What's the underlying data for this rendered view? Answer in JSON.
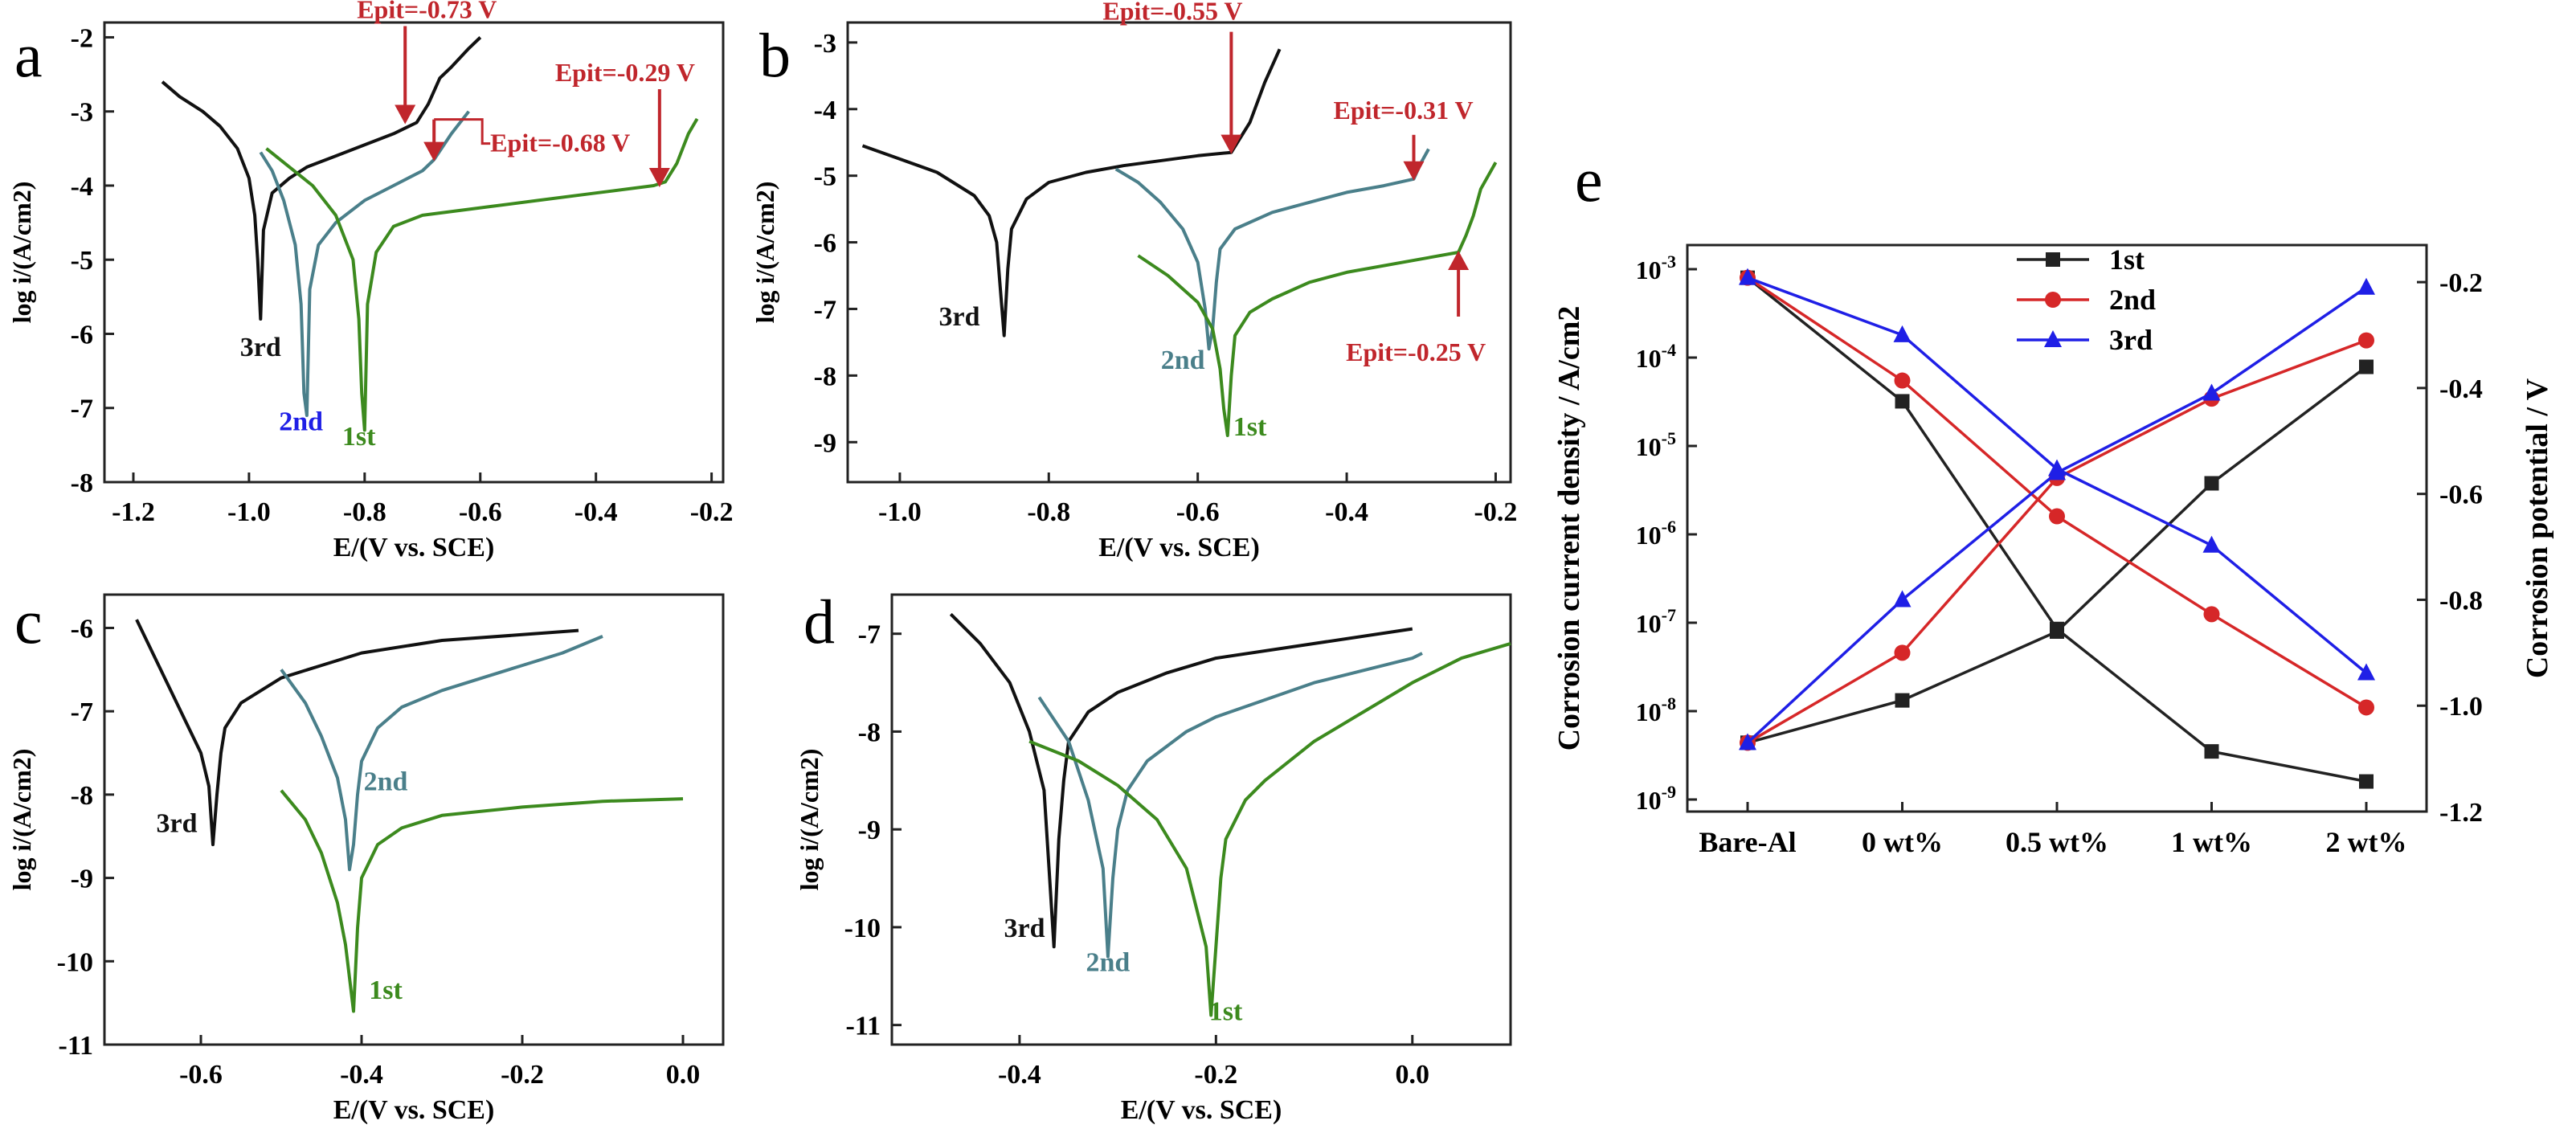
{
  "chart_data": [
    {
      "panel": "a",
      "type": "line",
      "xlabel": "E/(V vs. SCE)",
      "ylabel": "log i/(A/cm2)",
      "xlim": [
        -1.25,
        -0.18
      ],
      "ylim": [
        -8,
        -1.8
      ],
      "xticks": [
        -1.2,
        -1.0,
        -0.8,
        -0.6,
        -0.4,
        -0.2
      ],
      "yticks": [
        -8,
        -7,
        -6,
        -5,
        -4,
        -3,
        -2
      ],
      "series": [
        {
          "name": "3rd",
          "color": "#111111",
          "x": [
            -1.15,
            -1.12,
            -1.08,
            -1.05,
            -1.02,
            -1.0,
            -0.99,
            -0.985,
            -0.98,
            -0.975,
            -0.96,
            -0.93,
            -0.9,
            -0.85,
            -0.8,
            -0.75,
            -0.71,
            -0.69,
            -0.67,
            -0.65,
            -0.62,
            -0.6
          ],
          "y": [
            -2.6,
            -2.8,
            -3.0,
            -3.2,
            -3.5,
            -3.9,
            -4.4,
            -5.0,
            -5.8,
            -4.6,
            -4.1,
            -3.9,
            -3.75,
            -3.6,
            -3.45,
            -3.3,
            -3.15,
            -2.9,
            -2.55,
            -2.4,
            -2.15,
            -2.0
          ]
        },
        {
          "name": "2nd",
          "color": "#4a7f8a",
          "x": [
            -0.98,
            -0.96,
            -0.94,
            -0.92,
            -0.91,
            -0.905,
            -0.9,
            -0.895,
            -0.88,
            -0.85,
            -0.8,
            -0.75,
            -0.7,
            -0.68,
            -0.65,
            -0.62
          ],
          "y": [
            -3.55,
            -3.8,
            -4.2,
            -4.8,
            -5.6,
            -6.8,
            -7.1,
            -5.4,
            -4.8,
            -4.5,
            -4.2,
            -4.0,
            -3.8,
            -3.65,
            -3.3,
            -3.0
          ]
        },
        {
          "name": "1st",
          "color": "#3c8a1e",
          "x": [
            -0.97,
            -0.93,
            -0.89,
            -0.85,
            -0.82,
            -0.81,
            -0.805,
            -0.8,
            -0.795,
            -0.78,
            -0.75,
            -0.7,
            -0.6,
            -0.5,
            -0.4,
            -0.3,
            -0.28,
            -0.26,
            -0.24,
            -0.225
          ],
          "y": [
            -3.5,
            -3.75,
            -4.0,
            -4.4,
            -5.0,
            -5.8,
            -6.8,
            -7.3,
            -5.6,
            -4.9,
            -4.55,
            -4.4,
            -4.3,
            -4.2,
            -4.1,
            -4.0,
            -3.95,
            -3.7,
            -3.3,
            -3.1
          ]
        }
      ],
      "annotations": [
        {
          "label": "Epit=-0.73 V",
          "x": -0.73,
          "y": -3.15
        },
        {
          "label": "Epit=-0.68 V",
          "x": -0.68,
          "y": -3.65
        },
        {
          "label": "Epit=-0.29 V",
          "x": -0.29,
          "y": -4.0
        }
      ],
      "curve_labels": [
        {
          "text": "3rd",
          "x": -0.98,
          "y": -6.3
        },
        {
          "text": "2nd",
          "x": -0.91,
          "y": -7.3
        },
        {
          "text": "1st",
          "x": -0.81,
          "y": -7.5
        }
      ]
    },
    {
      "panel": "b",
      "type": "line",
      "xlabel": "E/(V vs. SCE)",
      "ylabel": "log i/(A/cm2)",
      "xlim": [
        -1.07,
        -0.18
      ],
      "ylim": [
        -9.6,
        -2.7
      ],
      "xticks": [
        -1.0,
        -0.8,
        -0.6,
        -0.4,
        -0.2
      ],
      "yticks": [
        -9,
        -8,
        -7,
        -6,
        -5,
        -4,
        -3
      ],
      "series": [
        {
          "name": "3rd",
          "color": "#111111",
          "x": [
            -1.05,
            -1.0,
            -0.95,
            -0.9,
            -0.88,
            -0.87,
            -0.865,
            -0.86,
            -0.855,
            -0.85,
            -0.83,
            -0.8,
            -0.75,
            -0.7,
            -0.6,
            -0.555,
            -0.53,
            -0.51,
            -0.49
          ],
          "y": [
            -4.55,
            -4.75,
            -4.95,
            -5.3,
            -5.6,
            -6.0,
            -6.7,
            -7.4,
            -6.4,
            -5.8,
            -5.35,
            -5.1,
            -4.95,
            -4.85,
            -4.7,
            -4.65,
            -4.2,
            -3.6,
            -3.1
          ]
        },
        {
          "name": "2nd",
          "color": "#4a7f8a",
          "x": [
            -0.71,
            -0.68,
            -0.65,
            -0.62,
            -0.6,
            -0.59,
            -0.585,
            -0.58,
            -0.575,
            -0.57,
            -0.55,
            -0.5,
            -0.45,
            -0.4,
            -0.35,
            -0.31,
            -0.3,
            -0.29
          ],
          "y": [
            -4.9,
            -5.1,
            -5.4,
            -5.8,
            -6.3,
            -7.0,
            -7.6,
            -7.3,
            -6.6,
            -6.1,
            -5.8,
            -5.55,
            -5.4,
            -5.25,
            -5.15,
            -5.05,
            -4.8,
            -4.6
          ]
        },
        {
          "name": "1st",
          "color": "#3c8a1e",
          "x": [
            -0.68,
            -0.64,
            -0.6,
            -0.58,
            -0.57,
            -0.565,
            -0.56,
            -0.555,
            -0.55,
            -0.53,
            -0.5,
            -0.45,
            -0.4,
            -0.3,
            -0.25,
            -0.24,
            -0.23,
            -0.22,
            -0.2
          ],
          "y": [
            -6.2,
            -6.5,
            -6.9,
            -7.3,
            -7.9,
            -8.5,
            -8.9,
            -8.0,
            -7.4,
            -7.05,
            -6.85,
            -6.6,
            -6.45,
            -6.25,
            -6.15,
            -5.9,
            -5.6,
            -5.2,
            -4.8
          ]
        }
      ],
      "annotations": [
        {
          "label": "Epit=-0.55 V",
          "x": -0.555,
          "y": -4.65
        },
        {
          "label": "Epit=-0.31 V",
          "x": -0.31,
          "y": -5.05
        },
        {
          "label": "Epit=-0.25 V",
          "x": -0.25,
          "y": -6.15
        }
      ],
      "curve_labels": [
        {
          "text": "3rd",
          "x": -0.92,
          "y": -7.25
        },
        {
          "text": "2nd",
          "x": -0.62,
          "y": -7.9
        },
        {
          "text": "1st",
          "x": -0.53,
          "y": -8.9
        }
      ]
    },
    {
      "panel": "c",
      "type": "line",
      "xlabel": "E/(V vs. SCE)",
      "ylabel": "log i/(A/cm2)",
      "xlim": [
        -0.72,
        0.05
      ],
      "ylim": [
        -11,
        -5.6
      ],
      "xticks": [
        -0.6,
        -0.4,
        -0.2,
        0.0
      ],
      "yticks": [
        -11,
        -10,
        -9,
        -8,
        -7,
        -6
      ],
      "series": [
        {
          "name": "3rd",
          "color": "#111111",
          "x": [
            -0.68,
            -0.66,
            -0.64,
            -0.62,
            -0.6,
            -0.59,
            -0.585,
            -0.58,
            -0.575,
            -0.57,
            -0.55,
            -0.5,
            -0.45,
            -0.4,
            -0.3,
            -0.2,
            -0.13
          ],
          "y": [
            -5.9,
            -6.3,
            -6.7,
            -7.1,
            -7.5,
            -7.9,
            -8.6,
            -8.0,
            -7.5,
            -7.2,
            -6.9,
            -6.6,
            -6.45,
            -6.3,
            -6.15,
            -6.08,
            -6.03
          ]
        },
        {
          "name": "2nd",
          "color": "#4a7f8a",
          "x": [
            -0.5,
            -0.47,
            -0.45,
            -0.43,
            -0.42,
            -0.415,
            -0.41,
            -0.405,
            -0.4,
            -0.38,
            -0.35,
            -0.3,
            -0.25,
            -0.2,
            -0.15,
            -0.1
          ],
          "y": [
            -6.5,
            -6.9,
            -7.3,
            -7.8,
            -8.3,
            -8.9,
            -8.6,
            -8.0,
            -7.6,
            -7.2,
            -6.95,
            -6.75,
            -6.6,
            -6.45,
            -6.3,
            -6.1
          ]
        },
        {
          "name": "1st",
          "color": "#3c8a1e",
          "x": [
            -0.5,
            -0.47,
            -0.45,
            -0.43,
            -0.42,
            -0.415,
            -0.41,
            -0.405,
            -0.4,
            -0.38,
            -0.35,
            -0.3,
            -0.2,
            -0.1,
            0.0
          ],
          "y": [
            -7.95,
            -8.3,
            -8.7,
            -9.3,
            -9.8,
            -10.2,
            -10.6,
            -9.6,
            -9.0,
            -8.6,
            -8.4,
            -8.25,
            -8.15,
            -8.08,
            -8.05
          ]
        }
      ],
      "annotations": [],
      "curve_labels": [
        {
          "text": "3rd",
          "x": -0.63,
          "y": -8.45
        },
        {
          "text": "2nd",
          "x": -0.37,
          "y": -7.95
        },
        {
          "text": "1st",
          "x": -0.37,
          "y": -10.45
        }
      ]
    },
    {
      "panel": "d",
      "type": "line",
      "xlabel": "E/(V vs. SCE)",
      "ylabel": "log i/(A/cm2)",
      "xlim": [
        -0.53,
        0.1
      ],
      "ylim": [
        -11.2,
        -6.6
      ],
      "xticks": [
        -0.4,
        -0.2,
        0.0
      ],
      "yticks": [
        -11,
        -10,
        -9,
        -8,
        -7
      ],
      "series": [
        {
          "name": "3rd",
          "color": "#111111",
          "x": [
            -0.47,
            -0.44,
            -0.41,
            -0.39,
            -0.375,
            -0.37,
            -0.365,
            -0.36,
            -0.355,
            -0.35,
            -0.33,
            -0.3,
            -0.25,
            -0.2,
            -0.1,
            0.0
          ],
          "y": [
            -6.8,
            -7.1,
            -7.5,
            -8.0,
            -8.6,
            -9.4,
            -10.2,
            -9.1,
            -8.5,
            -8.1,
            -7.8,
            -7.6,
            -7.4,
            -7.25,
            -7.1,
            -6.95
          ]
        },
        {
          "name": "2nd",
          "color": "#4a7f8a",
          "x": [
            -0.38,
            -0.35,
            -0.33,
            -0.315,
            -0.31,
            -0.305,
            -0.3,
            -0.29,
            -0.27,
            -0.23,
            -0.2,
            -0.1,
            0.0,
            0.01
          ],
          "y": [
            -7.65,
            -8.1,
            -8.7,
            -9.4,
            -10.3,
            -9.5,
            -9.0,
            -8.6,
            -8.3,
            -8.0,
            -7.85,
            -7.5,
            -7.25,
            -7.2
          ]
        },
        {
          "name": "1st",
          "color": "#3c8a1e",
          "x": [
            -0.39,
            -0.34,
            -0.3,
            -0.26,
            -0.23,
            -0.21,
            -0.205,
            -0.2,
            -0.195,
            -0.19,
            -0.17,
            -0.15,
            -0.1,
            -0.05,
            0.0,
            0.05,
            0.1
          ],
          "y": [
            -8.1,
            -8.3,
            -8.55,
            -8.9,
            -9.4,
            -10.2,
            -10.9,
            -10.2,
            -9.5,
            -9.1,
            -8.7,
            -8.5,
            -8.1,
            -7.8,
            -7.5,
            -7.25,
            -7.1
          ]
        }
      ],
      "annotations": [],
      "curve_labels": [
        {
          "text": "3rd",
          "x": -0.395,
          "y": -10.1
        },
        {
          "text": "2nd",
          "x": -0.31,
          "y": -10.45
        },
        {
          "text": "1st",
          "x": -0.19,
          "y": -10.95
        }
      ]
    },
    {
      "panel": "e",
      "type": "line",
      "xlabel": "",
      "ylabel": "Corrosion current density / A/cm2",
      "ylabel_right": "Corrosion potential / V",
      "categories": [
        "Bare-Al",
        "0 wt%",
        "0.5 wt%",
        "1 wt%",
        "2 wt%"
      ],
      "y_left_scale": "log",
      "y_left_lim": [
        1e-09,
        0.001
      ],
      "y_left_ticks": [
        "10-9",
        "10-8",
        "10-7",
        "10-6",
        "10-5",
        "10-4",
        "10-3"
      ],
      "y_right_lim": [
        -1.2,
        -0.13
      ],
      "y_right_ticks": [
        -1.2,
        -1.0,
        -0.8,
        -0.6,
        -0.4,
        -0.2
      ],
      "legend": "top-center",
      "series": [
        {
          "name": "1st",
          "color": "#222222",
          "marker": "square",
          "current": [
            0.0008,
            3.2e-05,
            8.5e-08,
            3.5e-09,
            1.6e-09
          ],
          "potential": [
            -1.07,
            -0.99,
            -0.86,
            -0.58,
            -0.36
          ]
        },
        {
          "name": "2nd",
          "color": "#d62728",
          "marker": "circle",
          "current": [
            0.0008,
            5.5e-05,
            1.6e-06,
            1.25e-07,
            1.1e-08
          ],
          "potential": [
            -1.07,
            -0.9,
            -0.57,
            -0.42,
            -0.31
          ]
        },
        {
          "name": "3rd",
          "color": "#1f1fe6",
          "marker": "triangle",
          "current": [
            0.0008,
            0.00018,
            5.5e-06,
            7.5e-07,
            2.7e-08
          ],
          "potential": [
            -1.07,
            -0.8,
            -0.56,
            -0.41,
            -0.21
          ]
        }
      ]
    }
  ]
}
